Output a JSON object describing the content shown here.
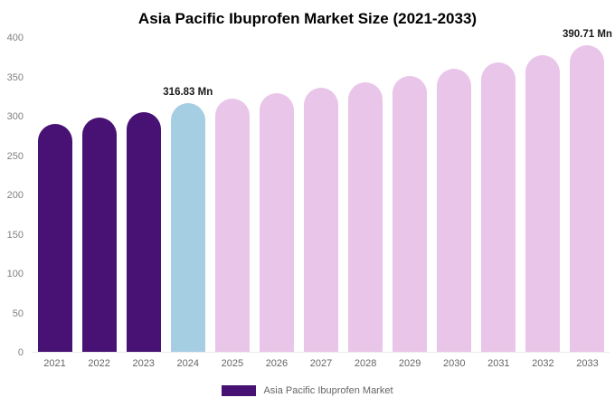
{
  "chart_data": {
    "type": "bar",
    "title": "Asia Pacific Ibuprofen Market Size (2021-2033)",
    "categories": [
      "2021",
      "2022",
      "2023",
      "2024",
      "2025",
      "2026",
      "2027",
      "2028",
      "2029",
      "2030",
      "2031",
      "2032",
      "2033"
    ],
    "values": [
      291,
      299,
      306,
      316.83,
      322.5,
      329.5,
      336.5,
      344,
      352,
      360.5,
      369,
      378.5,
      390.71
    ],
    "bar_colors": [
      "#481274",
      "#481274",
      "#481274",
      "#a6cee3",
      "#e9c6e9",
      "#e9c6e9",
      "#e9c6e9",
      "#e9c6e9",
      "#e9c6e9",
      "#e9c6e9",
      "#e9c6e9",
      "#e9c6e9",
      "#e9c6e9"
    ],
    "unit": "Mn",
    "annotations": [
      {
        "index": 3,
        "text": "316.83 Mn"
      },
      {
        "index": 12,
        "text": "390.71 Mn"
      }
    ],
    "xlabel": "",
    "ylabel": "",
    "ylim": [
      0,
      400
    ],
    "yticks": [
      0,
      50,
      100,
      150,
      200,
      250,
      300,
      350,
      400
    ],
    "grid": false,
    "legend": {
      "position": "bottom",
      "entries": [
        {
          "label": "Asia Pacific Ibuprofen Market",
          "color": "#481274"
        }
      ]
    }
  }
}
